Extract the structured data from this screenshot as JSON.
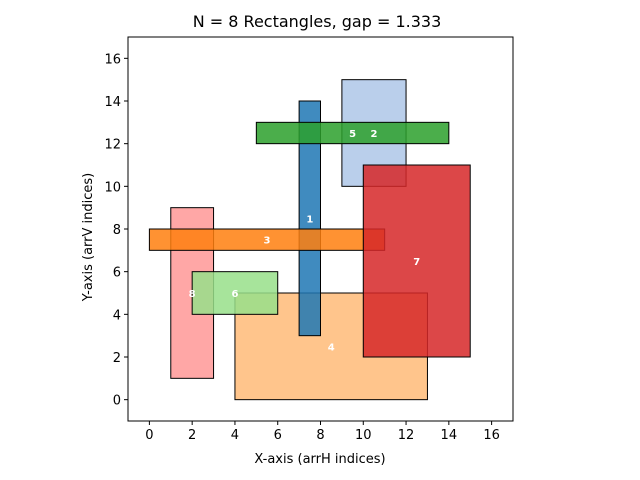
{
  "chart_data": {
    "type": "rectangles",
    "title": "N = 8 Rectangles, gap = 1.333",
    "xlabel": "X-axis (arrH indices)",
    "ylabel": "Y-axis (arrV indices)",
    "xlim": [
      -1,
      17
    ],
    "ylim": [
      -1,
      17
    ],
    "xticks": [
      0,
      2,
      4,
      6,
      8,
      10,
      12,
      14,
      16
    ],
    "yticks": [
      0,
      2,
      4,
      6,
      8,
      10,
      12,
      14,
      16
    ],
    "grid": false,
    "legend": "none",
    "rectangles": [
      {
        "label": "4",
        "x0": 4,
        "x1": 13,
        "y0": 0,
        "y1": 5,
        "color": "#ffbb78",
        "opacity": 0.85
      },
      {
        "label": "8",
        "x0": 1,
        "x1": 3,
        "y0": 1,
        "y1": 9,
        "color": "#ff9896",
        "opacity": 0.85
      },
      {
        "label": "6",
        "x0": 2,
        "x1": 6,
        "y0": 4,
        "y1": 6,
        "color": "#98df8a",
        "opacity": 0.85
      },
      {
        "label": "1",
        "x0": 7,
        "x1": 8,
        "y0": 3,
        "y1": 14,
        "color": "#1f77b4",
        "opacity": 0.85
      },
      {
        "label": "2",
        "x0": 9,
        "x1": 12,
        "y0": 10,
        "y1": 15,
        "color": "#aec7e8",
        "opacity": 0.85
      },
      {
        "label": "3",
        "x0": 0,
        "x1": 11,
        "y0": 7,
        "y1": 8,
        "color": "#ff7f0e",
        "opacity": 0.85
      },
      {
        "label": "5",
        "x0": 5,
        "x1": 14,
        "y0": 12,
        "y1": 13,
        "color": "#2ca02c",
        "opacity": 0.85
      },
      {
        "label": "7",
        "x0": 10,
        "x1": 15,
        "y0": 2,
        "y1": 11,
        "color": "#d62728",
        "opacity": 0.85
      }
    ]
  }
}
